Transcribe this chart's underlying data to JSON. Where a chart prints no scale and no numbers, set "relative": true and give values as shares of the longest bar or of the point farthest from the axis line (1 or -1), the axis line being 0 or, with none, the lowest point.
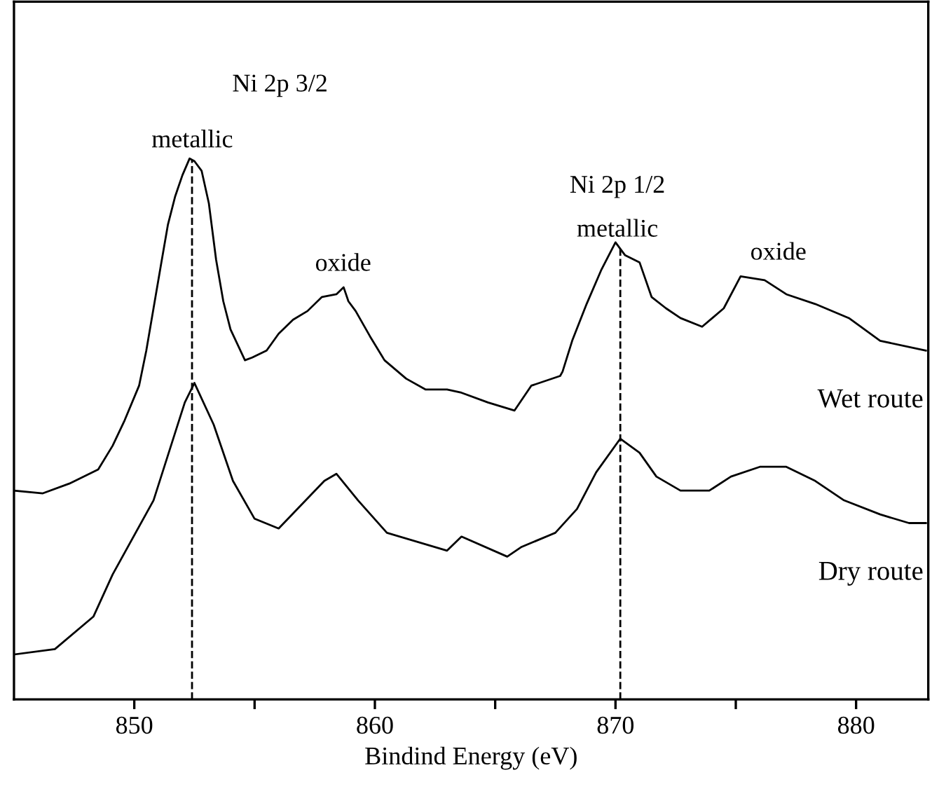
{
  "chart_data": {
    "type": "line",
    "relative": true,
    "xlabel": "Bindind Energy (eV)",
    "xlim": [
      845,
      883
    ],
    "xticks": [
      850,
      {
        "value": 855,
        "label": null
      },
      860,
      {
        "value": 865,
        "label": null
      },
      870,
      {
        "value": 875,
        "label": null
      },
      880
    ],
    "grid": false,
    "legend": false,
    "marker": "none",
    "line_style": "solid",
    "series": [
      {
        "name": "Wet route",
        "color": "#000000",
        "x": [
          845.0,
          846.2,
          847.3,
          848.5,
          849.1,
          849.6,
          850.2,
          850.5,
          850.8,
          851.1,
          851.4,
          851.7,
          852.0,
          852.3,
          852.5,
          852.8,
          853.1,
          853.4,
          853.7,
          854.0,
          854.6,
          854.9,
          855.5,
          856.0,
          856.6,
          857.2,
          857.8,
          858.4,
          858.7,
          858.9,
          859.2,
          859.8,
          860.4,
          861.3,
          862.1,
          863.0,
          863.6,
          864.7,
          865.8,
          866.5,
          867.7,
          867.8,
          868.2,
          868.8,
          869.4,
          870.0,
          870.4,
          871.0,
          871.5,
          872.1,
          872.7,
          873.6,
          874.5,
          875.2,
          876.2,
          877.1,
          878.3,
          879.7,
          881.0,
          882.9
        ],
        "values": [
          0.386,
          0.381,
          0.399,
          0.425,
          0.469,
          0.516,
          0.58,
          0.645,
          0.723,
          0.801,
          0.878,
          0.93,
          0.969,
          1.0,
          0.995,
          0.977,
          0.917,
          0.813,
          0.736,
          0.684,
          0.627,
          0.632,
          0.645,
          0.676,
          0.702,
          0.718,
          0.744,
          0.749,
          0.762,
          0.736,
          0.718,
          0.671,
          0.627,
          0.593,
          0.573,
          0.573,
          0.567,
          0.549,
          0.534,
          0.58,
          0.598,
          0.606,
          0.663,
          0.731,
          0.793,
          0.845,
          0.821,
          0.808,
          0.744,
          0.723,
          0.705,
          0.689,
          0.723,
          0.782,
          0.775,
          0.749,
          0.731,
          0.705,
          0.663,
          0.645
        ]
      },
      {
        "name": "Dry route",
        "color": "#000000",
        "x": [
          845.0,
          846.7,
          848.3,
          849.1,
          850.8,
          852.1,
          852.5,
          853.3,
          854.1,
          855.0,
          856.0,
          857.9,
          858.4,
          859.3,
          860.5,
          863.0,
          863.6,
          865.5,
          866.1,
          867.5,
          868.4,
          869.2,
          870.2,
          871.0,
          871.7,
          872.7,
          873.9,
          874.8,
          876.0,
          877.1,
          878.3,
          879.5,
          881.0,
          882.2,
          882.9
        ],
        "values": [
          0.083,
          0.093,
          0.153,
          0.231,
          0.368,
          0.549,
          0.585,
          0.508,
          0.404,
          0.334,
          0.316,
          0.404,
          0.417,
          0.368,
          0.308,
          0.275,
          0.301,
          0.264,
          0.282,
          0.308,
          0.352,
          0.42,
          0.482,
          0.456,
          0.412,
          0.386,
          0.386,
          0.412,
          0.43,
          0.43,
          0.404,
          0.368,
          0.342,
          0.326,
          0.326
        ]
      }
    ],
    "ref_lines": [
      {
        "axis": "x",
        "value": 852.4,
        "line_style": "dashed",
        "color": "#000000"
      },
      {
        "axis": "x",
        "value": 870.2,
        "line_style": "dashed",
        "color": "#000000"
      }
    ],
    "annotations": [
      "Ni 2p 3/2",
      "metallic",
      "oxide",
      "Ni 2p 1/2",
      "metallic",
      "oxide"
    ]
  }
}
